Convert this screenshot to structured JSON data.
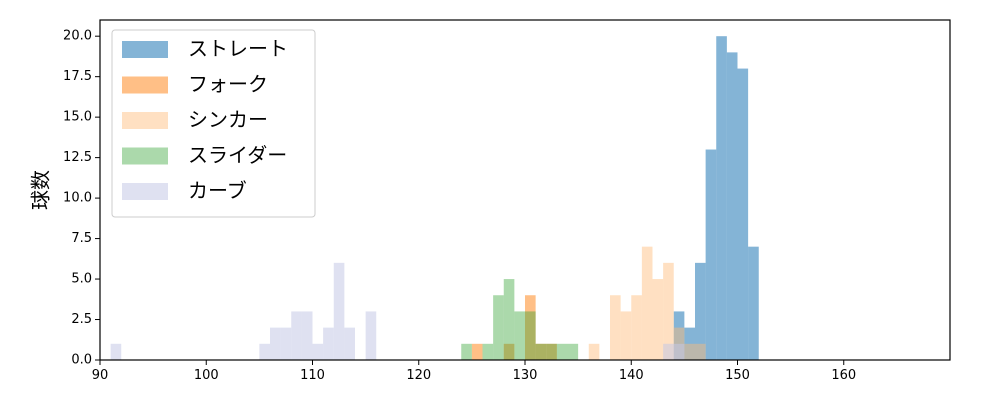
{
  "chart_data": {
    "type": "bar",
    "title": "",
    "xlabel": "",
    "ylabel": "球数",
    "xlim": [
      90,
      170
    ],
    "ylim": [
      0,
      21
    ],
    "xticks": [
      90,
      100,
      110,
      120,
      130,
      140,
      150,
      160
    ],
    "yticks": [
      0.0,
      2.5,
      5.0,
      7.5,
      10.0,
      12.5,
      15.0,
      17.5,
      20.0
    ],
    "ytick_labels": [
      "0.0",
      "2.5",
      "5.0",
      "7.5",
      "10.0",
      "12.5",
      "15.0",
      "17.5",
      "20.0"
    ],
    "grid": false,
    "legend_position": "top-left",
    "bin_width": 1,
    "series": [
      {
        "name": "ストレート",
        "color": "#1f77b4",
        "opacity": 0.55,
        "bins": [
          [
            144,
            3
          ],
          [
            145,
            2
          ],
          [
            146,
            6
          ],
          [
            147,
            13
          ],
          [
            148,
            20
          ],
          [
            149,
            19
          ],
          [
            150,
            18
          ],
          [
            151,
            7
          ]
        ]
      },
      {
        "name": "フォーク",
        "color": "#ff7f0e",
        "opacity": 0.5,
        "bins": [
          [
            125,
            1
          ],
          [
            128,
            1
          ],
          [
            130,
            4
          ],
          [
            131,
            1
          ],
          [
            132,
            1
          ]
        ]
      },
      {
        "name": "シンカー",
        "color": "#ffbb78",
        "opacity": 0.45,
        "bins": [
          [
            136,
            1
          ],
          [
            138,
            4
          ],
          [
            139,
            3
          ],
          [
            140,
            4
          ],
          [
            141,
            7
          ],
          [
            142,
            5
          ],
          [
            143,
            6
          ],
          [
            144,
            2
          ],
          [
            145,
            1
          ],
          [
            146,
            1
          ]
        ]
      },
      {
        "name": "スライダー",
        "color": "#2ca02c",
        "opacity": 0.4,
        "bins": [
          [
            124,
            1
          ],
          [
            126,
            1
          ],
          [
            127,
            4
          ],
          [
            128,
            5
          ],
          [
            129,
            3
          ],
          [
            130,
            3
          ],
          [
            131,
            1
          ],
          [
            132,
            1
          ],
          [
            133,
            1
          ],
          [
            134,
            1
          ]
        ]
      },
      {
        "name": "カーブ",
        "color": "#c5c8e6",
        "opacity": 0.55,
        "bins": [
          [
            91,
            1
          ],
          [
            105,
            1
          ],
          [
            106,
            2
          ],
          [
            107,
            2
          ],
          [
            108,
            3
          ],
          [
            109,
            3
          ],
          [
            110,
            1
          ],
          [
            111,
            2
          ],
          [
            112,
            6
          ],
          [
            113,
            2
          ],
          [
            115,
            3
          ],
          [
            143,
            1
          ],
          [
            144,
            1
          ]
        ]
      }
    ]
  }
}
